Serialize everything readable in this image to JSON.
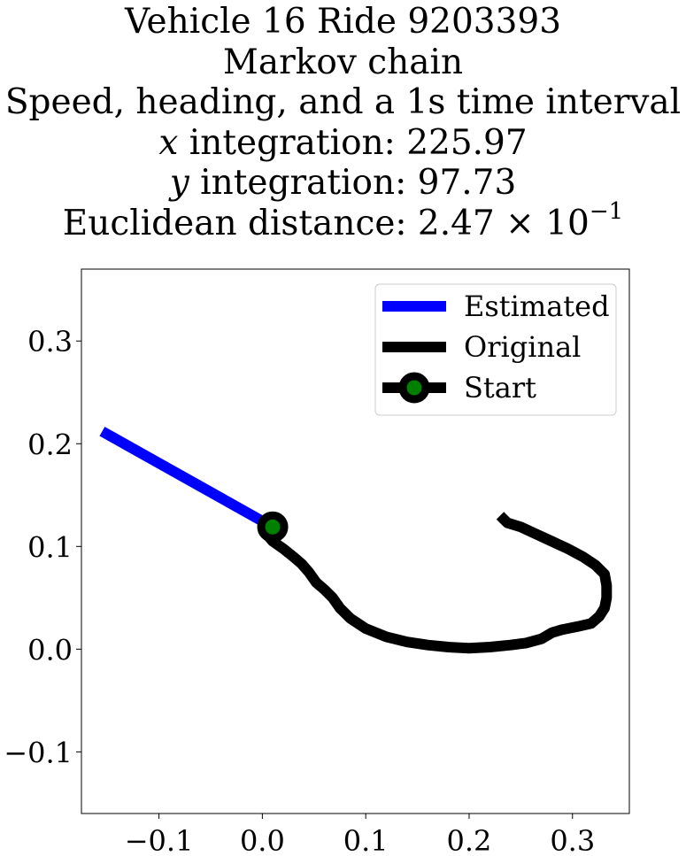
{
  "chart_data": {
    "type": "line",
    "title_lines": {
      "line1": "Vehicle 16 Ride 9203393",
      "line2": "Markov chain",
      "line3": "Speed, heading, and a 1s time interval",
      "x_var": "x",
      "x_text": " integration: 225.97",
      "y_var": "y",
      "y_text": " integration: 97.73",
      "dist_text": "Euclidean distance: 2.47 × 10",
      "dist_exp": "−1"
    },
    "xlim": [
      -0.175,
      0.355
    ],
    "ylim": [
      -0.16,
      0.37
    ],
    "xticks": [
      {
        "v": -0.1,
        "label": "−0.1"
      },
      {
        "v": 0.0,
        "label": "0.0"
      },
      {
        "v": 0.1,
        "label": "0.1"
      },
      {
        "v": 0.2,
        "label": "0.2"
      },
      {
        "v": 0.3,
        "label": "0.3"
      }
    ],
    "yticks": [
      {
        "v": -0.1,
        "label": "−0.1"
      },
      {
        "v": 0.0,
        "label": "0.0"
      },
      {
        "v": 0.1,
        "label": "0.1"
      },
      {
        "v": 0.2,
        "label": "0.2"
      },
      {
        "v": 0.3,
        "label": "0.3"
      }
    ],
    "grid": false,
    "legend_placement": "upper-right",
    "series": [
      {
        "name": "Estimated",
        "color": "#0000ff",
        "x": [
          -0.155,
          0.01
        ],
        "y": [
          0.212,
          0.119
        ]
      },
      {
        "name": "Original",
        "color": "#000000",
        "x": [
          0.23,
          0.237,
          0.25,
          0.265,
          0.28,
          0.295,
          0.31,
          0.322,
          0.331,
          0.333,
          0.333,
          0.331,
          0.326,
          0.318,
          0.305,
          0.29,
          0.28,
          0.27,
          0.255,
          0.24,
          0.22,
          0.2,
          0.18,
          0.16,
          0.14,
          0.12,
          0.1,
          0.085,
          0.075,
          0.068,
          0.06,
          0.052,
          0.045,
          0.038,
          0.03,
          0.02,
          0.01,
          0.005,
          0.003,
          0.01
        ],
        "y": [
          0.13,
          0.123,
          0.119,
          0.112,
          0.105,
          0.098,
          0.09,
          0.082,
          0.073,
          0.062,
          0.05,
          0.04,
          0.032,
          0.025,
          0.022,
          0.019,
          0.016,
          0.01,
          0.006,
          0.004,
          0.002,
          0.001,
          0.002,
          0.004,
          0.007,
          0.012,
          0.02,
          0.03,
          0.04,
          0.05,
          0.058,
          0.065,
          0.075,
          0.083,
          0.09,
          0.098,
          0.105,
          0.111,
          0.116,
          0.119
        ]
      }
    ],
    "start_point": {
      "name": "Start",
      "x": 0.01,
      "y": 0.119,
      "color": "#000000",
      "face_color": "#008000"
    }
  }
}
